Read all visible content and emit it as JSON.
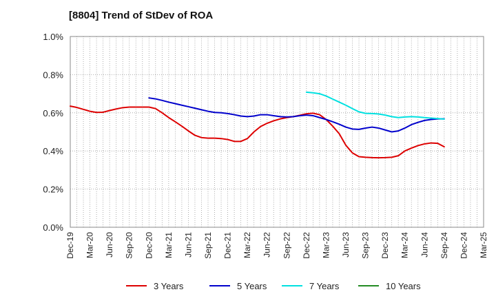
{
  "chart_data": {
    "type": "line",
    "title": "[8804]  Trend of StDev of ROA",
    "xlabel": "",
    "ylabel": "",
    "ylim": [
      0,
      1.0
    ],
    "y_ticks": [
      0,
      0.2,
      0.4,
      0.6,
      0.8,
      1.0
    ],
    "y_tick_labels": [
      "0.0%",
      "0.2%",
      "0.4%",
      "0.6%",
      "0.8%",
      "1.0%"
    ],
    "x_tick_labels": [
      "Dec-19",
      "Mar-20",
      "Jun-20",
      "Sep-20",
      "Dec-20",
      "Mar-21",
      "Jun-21",
      "Sep-21",
      "Dec-21",
      "Mar-22",
      "Jun-22",
      "Sep-22",
      "Dec-22",
      "Mar-23",
      "Jun-23",
      "Sep-23",
      "Dec-23",
      "Mar-24",
      "Jun-24",
      "Sep-24",
      "Dec-24",
      "Mar-25"
    ],
    "grid": true,
    "legend_position": "bottom",
    "series": [
      {
        "name": "3 Years",
        "color": "#dd0000",
        "start_index": 0,
        "values": [
          0.635,
          0.628,
          0.618,
          0.608,
          0.602,
          0.603,
          0.612,
          0.62,
          0.627,
          0.63,
          0.63,
          0.63,
          0.63,
          0.622,
          0.6,
          0.575,
          0.553,
          0.53,
          0.505,
          0.482,
          0.47,
          0.467,
          0.467,
          0.465,
          0.46,
          0.45,
          0.45,
          0.465,
          0.5,
          0.528,
          0.545,
          0.558,
          0.568,
          0.575,
          0.58,
          0.587,
          0.595,
          0.598,
          0.59,
          0.565,
          0.53,
          0.49,
          0.43,
          0.39,
          0.37,
          0.367,
          0.365,
          0.364,
          0.365,
          0.367,
          0.375,
          0.4,
          0.415,
          0.428,
          0.437,
          0.442,
          0.44,
          0.422
        ]
      },
      {
        "name": "5 Years",
        "color": "#0000cc",
        "start_index": 12,
        "values": [
          0.678,
          0.673,
          0.665,
          0.656,
          0.648,
          0.64,
          0.632,
          0.624,
          0.616,
          0.608,
          0.602,
          0.6,
          0.596,
          0.59,
          0.583,
          0.58,
          0.583,
          0.59,
          0.59,
          0.585,
          0.58,
          0.578,
          0.58,
          0.585,
          0.588,
          0.585,
          0.575,
          0.565,
          0.553,
          0.54,
          0.525,
          0.515,
          0.513,
          0.52,
          0.525,
          0.52,
          0.51,
          0.5,
          0.505,
          0.52,
          0.538,
          0.55,
          0.56,
          0.565,
          0.568,
          0.568
        ]
      },
      {
        "name": "7 Years",
        "color": "#00e0e0",
        "start_index": 36,
        "values": [
          0.708,
          0.705,
          0.7,
          0.688,
          0.672,
          0.656,
          0.64,
          0.622,
          0.605,
          0.597,
          0.596,
          0.594,
          0.588,
          0.58,
          0.575,
          0.578,
          0.58,
          0.578,
          0.575,
          0.572,
          0.57,
          0.567
        ]
      },
      {
        "name": "10 Years",
        "color": "#228b22",
        "start_index": 0,
        "values": []
      }
    ]
  }
}
